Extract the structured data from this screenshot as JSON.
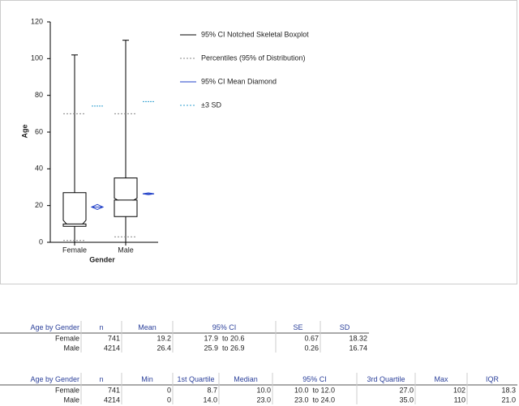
{
  "chart_data": {
    "type": "boxplot",
    "x_label": "Gender",
    "y_label": "Age",
    "categories": [
      "Female",
      "Male"
    ],
    "min": [
      0,
      0
    ],
    "q1": [
      8.7,
      14.0
    ],
    "median": [
      10.0,
      23.0
    ],
    "q3": [
      27.0,
      35.0
    ],
    "max": [
      102,
      110
    ],
    "notch_low": [
      10.0,
      23.0
    ],
    "notch_high": [
      12.0,
      24.0
    ],
    "percentile_low": [
      1,
      3
    ],
    "percentile_high": [
      70,
      70
    ],
    "mean": [
      19.2,
      26.4
    ],
    "mean_ci_low": [
      17.9,
      25.9
    ],
    "mean_ci_high": [
      20.6,
      26.9
    ],
    "sd_upper": [
      74.2,
      76.6
    ],
    "ylim": [
      0,
      120
    ],
    "yticks": [
      0,
      20,
      40,
      60,
      80,
      100,
      120
    ],
    "legend": [
      {
        "name": "95% CI Notched Skeletal Boxplot",
        "color": "#000000",
        "dashed": false
      },
      {
        "name": "Percentiles (95% of Distribution)",
        "color": "#888888",
        "dashed": true
      },
      {
        "name": "95% CI Mean Diamond",
        "color": "#2040c8",
        "dashed": false
      },
      {
        "name": "±3 SD",
        "color": "#30a0d0",
        "dashed": true
      }
    ]
  },
  "tables": [
    {
      "header": [
        "Age by Gender",
        "n",
        "Mean",
        "95% CI",
        "SE",
        "SD"
      ],
      "rows": [
        [
          "Female",
          "741",
          "19.2",
          "17.9  to 20.6",
          "0.67",
          "18.32"
        ],
        [
          "Male",
          "4214",
          "26.4",
          "25.9  to 26.9",
          "0.26",
          "16.74"
        ]
      ]
    },
    {
      "header": [
        "Age by Gender",
        "n",
        "Min",
        "1st Quartile",
        "Median",
        "95% CI",
        "3rd Quartile",
        "Max",
        "IQR"
      ],
      "rows": [
        [
          "Female",
          "741",
          "0",
          "8.7",
          "10.0",
          "10.0  to 12.0",
          "27.0",
          "102",
          "18.3"
        ],
        [
          "Male",
          "4214",
          "0",
          "14.0",
          "23.0",
          "23.0  to 24.0",
          "35.0",
          "110",
          "21.0"
        ]
      ]
    }
  ]
}
